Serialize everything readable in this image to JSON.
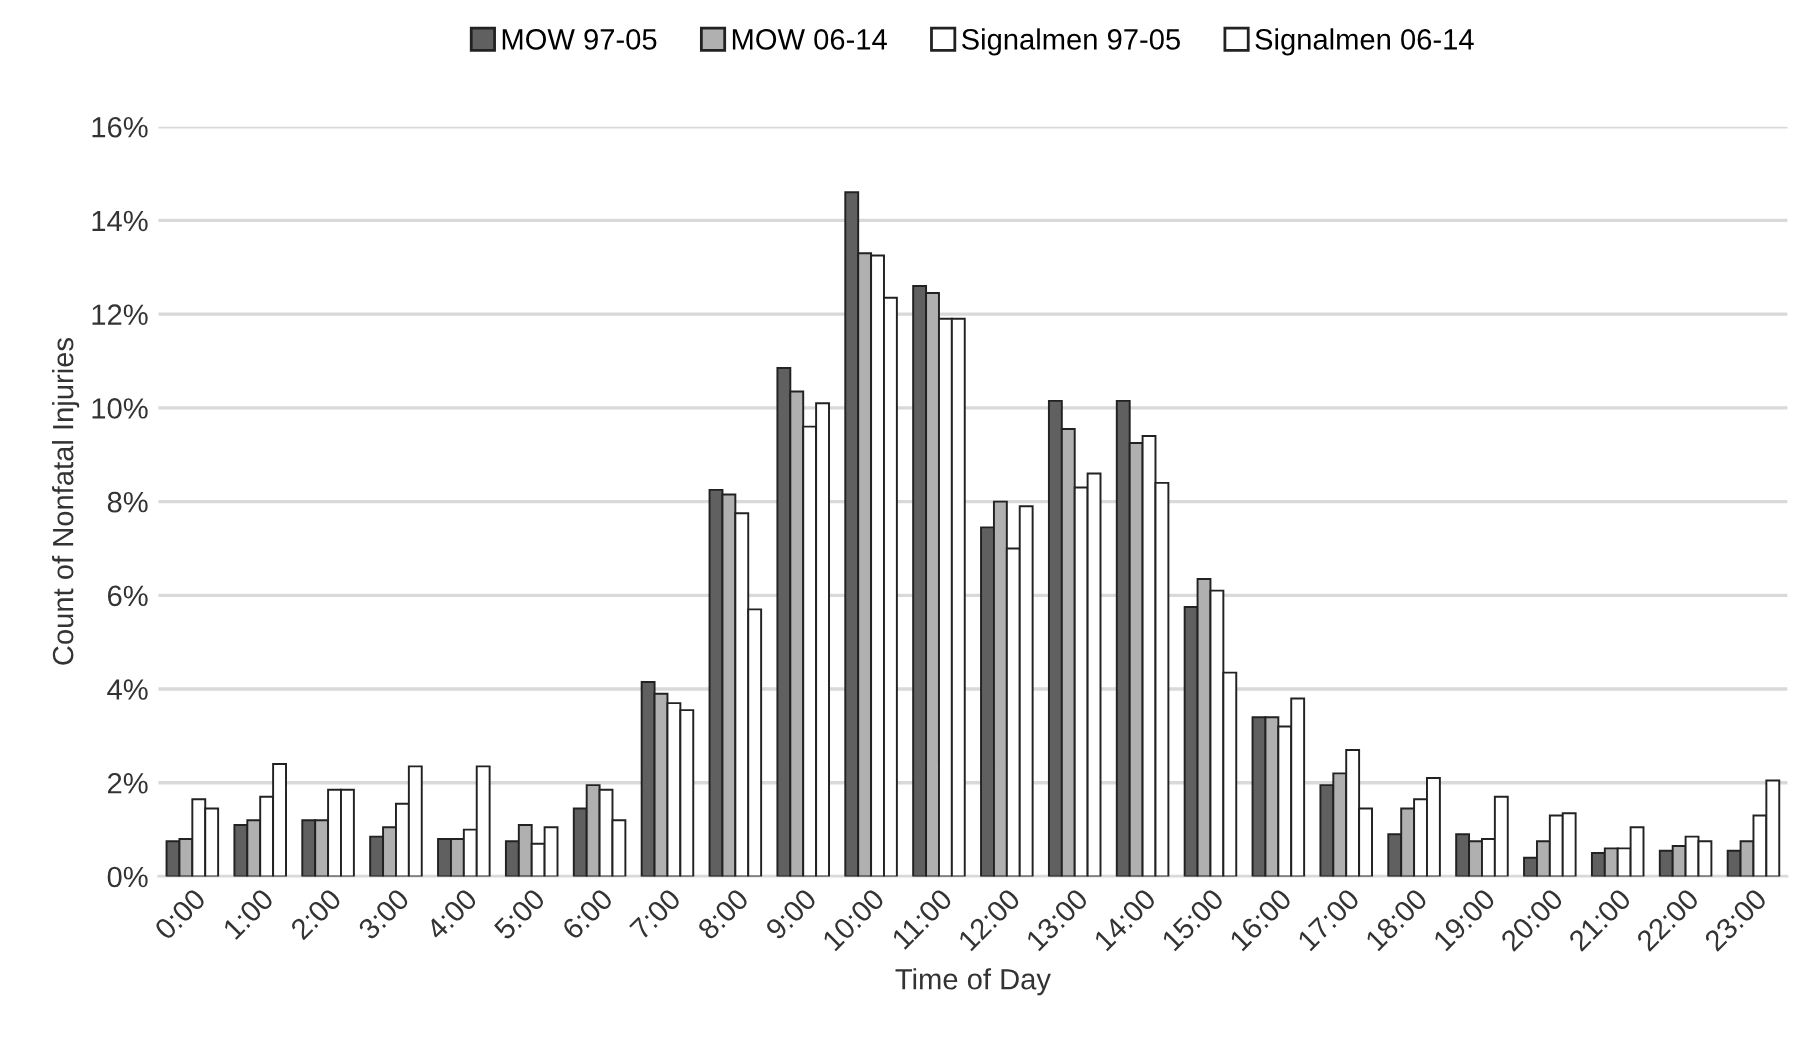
{
  "chart_data": {
    "type": "bar",
    "xlabel": "Time of Day",
    "ylabel": "Count of Nonfatal Injuries",
    "categories": [
      "0:00",
      "1:00",
      "2:00",
      "3:00",
      "4:00",
      "5:00",
      "6:00",
      "7:00",
      "8:00",
      "9:00",
      "10:00",
      "11:00",
      "12:00",
      "13:00",
      "14:00",
      "15:00",
      "16:00",
      "17:00",
      "18:00",
      "19:00",
      "20:00",
      "21:00",
      "22:00",
      "23:00"
    ],
    "series": [
      {
        "name": "MOW 97-05",
        "color": "#606060",
        "values": [
          0.75,
          1.1,
          1.2,
          0.85,
          0.8,
          0.75,
          1.45,
          4.15,
          8.25,
          10.85,
          14.6,
          12.6,
          7.45,
          10.15,
          10.15,
          5.75,
          3.4,
          1.95,
          0.9,
          0.9,
          0.4,
          0.5,
          0.55,
          0.55
        ]
      },
      {
        "name": "MOW 06-14",
        "color": "#b0b0b0",
        "values": [
          0.8,
          1.2,
          1.2,
          1.05,
          0.8,
          1.1,
          1.95,
          3.9,
          8.15,
          10.35,
          13.3,
          12.45,
          8.0,
          9.55,
          9.25,
          6.35,
          3.4,
          2.2,
          1.45,
          0.75,
          0.75,
          0.6,
          0.65,
          0.75
        ]
      },
      {
        "name": "Signalmen 97-05",
        "color": "#ffffff",
        "values": [
          1.65,
          1.7,
          1.85,
          1.55,
          1.0,
          0.7,
          1.85,
          3.7,
          7.75,
          9.6,
          13.25,
          11.9,
          7.0,
          8.3,
          9.4,
          6.1,
          3.2,
          2.7,
          1.65,
          0.8,
          1.3,
          0.6,
          0.85,
          1.3
        ]
      },
      {
        "name": "Signalmen 06-14",
        "color": "#ffffff",
        "values": [
          1.45,
          2.4,
          1.85,
          2.35,
          2.35,
          1.05,
          1.2,
          3.55,
          5.7,
          10.1,
          12.35,
          11.9,
          7.9,
          8.6,
          8.4,
          4.35,
          3.8,
          1.45,
          2.1,
          1.7,
          1.35,
          1.05,
          0.75,
          2.05
        ]
      }
    ],
    "ylim": [
      0,
      16
    ],
    "yticks": [
      {
        "value": 0,
        "label": "0%"
      },
      {
        "value": 2,
        "label": "2%"
      },
      {
        "value": 4,
        "label": "4%"
      },
      {
        "value": 6,
        "label": "6%"
      },
      {
        "value": 8,
        "label": "8%"
      },
      {
        "value": 10,
        "label": "10%"
      },
      {
        "value": 12,
        "label": "12%"
      },
      {
        "value": 14,
        "label": "14%"
      },
      {
        "value": 16,
        "label": "16%"
      }
    ],
    "grid": "y",
    "legend": "top"
  }
}
